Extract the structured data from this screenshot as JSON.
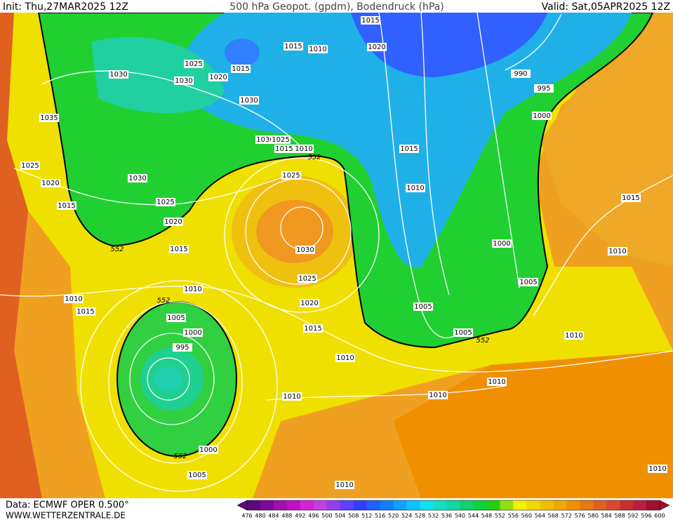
{
  "header": {
    "init": "Init: Thu,27MAR2025 12Z",
    "title": "500 hPa Geopot. (gpdm), Bodendruck (hPa)",
    "valid": "Valid: Sat,05APR2025 12Z"
  },
  "isobar_labels": [
    "1015",
    "1015",
    "1010",
    "1020",
    "1025",
    "1015",
    "1030",
    "1030",
    "1020",
    "990",
    "995",
    "1030",
    "1035",
    "1000",
    "1030",
    "1025",
    "1015",
    "1010",
    "552",
    "1015",
    "1025",
    "1030",
    "1025",
    "1020",
    "1010",
    "1015",
    "1025",
    "1015",
    "1020",
    "552",
    "1015",
    "1030",
    "1000",
    "1010",
    "1025",
    "1005",
    "1010",
    "1010",
    "552",
    "1015",
    "1020",
    "1005",
    "1005",
    "1015",
    "1000",
    "1005",
    "552",
    "1010",
    "995",
    "1010",
    "1010",
    "1010",
    "1010",
    "1000",
    "552",
    "1005",
    "1010",
    "1010"
  ],
  "footer": {
    "source": "Data: ECMWF OPER 0.500°",
    "website": "WWW.WETTERZENTRALE.DE"
  },
  "colorbar": {
    "levels": [
      476,
      480,
      484,
      488,
      492,
      496,
      500,
      504,
      508,
      512,
      516,
      520,
      524,
      528,
      532,
      536,
      540,
      544,
      548,
      552,
      556,
      560,
      564,
      568,
      572,
      576,
      580,
      584,
      588,
      592,
      596,
      600
    ],
    "colors": [
      "#5a0a7a",
      "#7a0a9a",
      "#a010b0",
      "#c010c8",
      "#d820d8",
      "#c040e0",
      "#9040f0",
      "#6040ff",
      "#3040ff",
      "#2060ff",
      "#1080ff",
      "#10a0ff",
      "#10c0ff",
      "#10e0f0",
      "#10e0c0",
      "#10d8a0",
      "#10d070",
      "#10d040",
      "#20d010",
      "#90e010",
      "#f0f000",
      "#f0d800",
      "#f0c000",
      "#f0a800",
      "#f09000",
      "#e87810",
      "#e06020",
      "#d84830",
      "#c83030",
      "#b82040",
      "#a01030"
    ]
  }
}
